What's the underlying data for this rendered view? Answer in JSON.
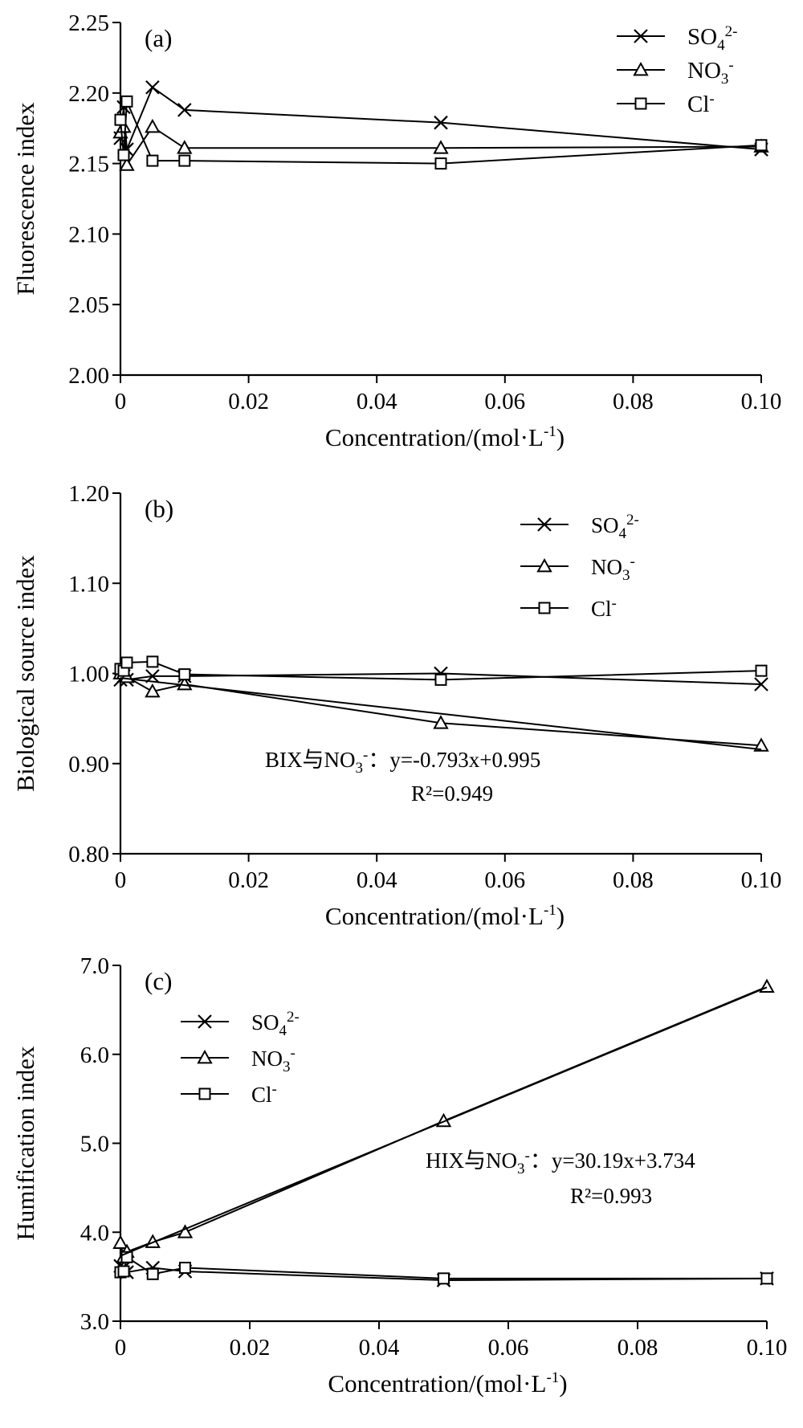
{
  "chart_data": [
    {
      "type": "line",
      "panel_label": "(a)",
      "xlabel": "Concentration/(mol·L",
      "xlabel_sup": "-1",
      "xlabel_tail": ")",
      "ylabel": "Fluorescence index",
      "xlim": [
        0,
        0.1
      ],
      "ylim": [
        2.0,
        2.25
      ],
      "xticks": [
        0,
        0.02,
        0.04,
        0.06,
        0.08,
        0.1
      ],
      "xtick_labels": [
        "0",
        "0.02",
        "0.04",
        "0.06",
        "0.08",
        "0.10"
      ],
      "yticks": [
        2.0,
        2.05,
        2.1,
        2.15,
        2.2,
        2.25
      ],
      "ytick_labels": [
        "2.00",
        "2.05",
        "2.10",
        "2.15",
        "2.20",
        "2.25"
      ],
      "legend_position": "top-right",
      "series": [
        {
          "name": "SO4 2-",
          "label_base": "SO",
          "label_sub": "4",
          "label_sup": "2-",
          "marker": "x",
          "x": [
            0,
            0.0005,
            0.001,
            0.005,
            0.01,
            0.05,
            0.1
          ],
          "y": [
            2.168,
            2.19,
            2.16,
            2.204,
            2.188,
            2.179,
            2.16
          ]
        },
        {
          "name": "NO3 -",
          "label_base": "NO",
          "label_sub": "3",
          "label_sup": "-",
          "marker": "triangle",
          "x": [
            0,
            0.0005,
            0.001,
            0.005,
            0.01,
            0.05,
            0.1
          ],
          "y": [
            2.172,
            2.176,
            2.149,
            2.176,
            2.161,
            2.161,
            2.162
          ]
        },
        {
          "name": "Cl -",
          "label_base": "Cl",
          "label_sub": "",
          "label_sup": "-",
          "marker": "square",
          "x": [
            0,
            0.0005,
            0.001,
            0.005,
            0.01,
            0.05,
            0.1
          ],
          "y": [
            2.181,
            2.156,
            2.194,
            2.152,
            2.152,
            2.15,
            2.163
          ]
        }
      ]
    },
    {
      "type": "line",
      "panel_label": "(b)",
      "xlabel": "Concentration/(mol·L",
      "xlabel_sup": "-1",
      "xlabel_tail": ")",
      "ylabel": "Biological source index",
      "xlim": [
        0,
        0.1
      ],
      "ylim": [
        0.8,
        1.2
      ],
      "xticks": [
        0,
        0.02,
        0.04,
        0.06,
        0.08,
        0.1
      ],
      "xtick_labels": [
        "0",
        "0.02",
        "0.04",
        "0.06",
        "0.08",
        "0.10"
      ],
      "yticks": [
        0.8,
        0.9,
        1.0,
        1.1,
        1.2
      ],
      "ytick_labels": [
        "0.80",
        "0.90",
        "1.00",
        "1.10",
        "1.20"
      ],
      "legend_position": "top-right",
      "annotation": {
        "line1_prefix": "BIX与NO",
        "line1_sub": "3",
        "line1_sup": "-",
        "line1_colon": "：",
        "line1_eq": "y=-0.793x+0.995",
        "line2": "R²=0.949"
      },
      "fit_line": {
        "slope": -0.793,
        "intercept": 0.995
      },
      "series": [
        {
          "name": "SO4 2-",
          "label_base": "SO",
          "label_sub": "4",
          "label_sup": "2-",
          "marker": "x",
          "x": [
            0,
            0.0005,
            0.001,
            0.005,
            0.01,
            0.05,
            0.1
          ],
          "y": [
            0.993,
            0.997,
            0.993,
            0.997,
            0.997,
            1.0,
            0.988
          ]
        },
        {
          "name": "NO3 -",
          "label_base": "NO",
          "label_sub": "3",
          "label_sup": "-",
          "marker": "triangle",
          "x": [
            0,
            0.0005,
            0.001,
            0.005,
            0.01,
            0.05,
            0.1
          ],
          "y": [
            1.0,
            1.0,
            0.996,
            0.98,
            0.988,
            0.945,
            0.92
          ]
        },
        {
          "name": "Cl -",
          "label_base": "Cl",
          "label_sub": "",
          "label_sup": "-",
          "marker": "square",
          "x": [
            0,
            0.0005,
            0.001,
            0.005,
            0.01,
            0.05,
            0.1
          ],
          "y": [
            1.005,
            1.003,
            1.012,
            1.013,
            0.999,
            0.993,
            1.003
          ]
        }
      ]
    },
    {
      "type": "line",
      "panel_label": "(c)",
      "xlabel": "Concentration/(mol·L",
      "xlabel_sup": "-1",
      "xlabel_tail": ")",
      "ylabel": "Humification index",
      "xlim": [
        0,
        0.1
      ],
      "ylim": [
        3.0,
        7.0
      ],
      "xticks": [
        0,
        0.02,
        0.04,
        0.06,
        0.08,
        0.1
      ],
      "xtick_labels": [
        "0",
        "0.02",
        "0.04",
        "0.06",
        "0.08",
        "0.10"
      ],
      "yticks": [
        3.0,
        4.0,
        5.0,
        6.0,
        7.0
      ],
      "ytick_labels": [
        "3.0",
        "4.0",
        "5.0",
        "6.0",
        "7.0"
      ],
      "legend_position": "top-left",
      "annotation": {
        "line1_prefix": "HIX与NO",
        "line1_sub": "3",
        "line1_sup": "-",
        "line1_colon": "：",
        "line1_eq": "y=30.19x+3.734",
        "line2": "R²=0.993"
      },
      "fit_line": {
        "slope": 30.19,
        "intercept": 3.734
      },
      "series": [
        {
          "name": "SO4 2-",
          "label_base": "SO",
          "label_sub": "4",
          "label_sup": "2-",
          "marker": "x",
          "x": [
            0,
            0.0005,
            0.001,
            0.005,
            0.01,
            0.05,
            0.1
          ],
          "y": [
            3.62,
            3.6,
            3.55,
            3.6,
            3.56,
            3.46,
            3.48
          ]
        },
        {
          "name": "NO3 -",
          "label_base": "NO",
          "label_sub": "3",
          "label_sup": "-",
          "marker": "triangle",
          "x": [
            0,
            0.0005,
            0.001,
            0.005,
            0.01,
            0.05,
            0.1
          ],
          "y": [
            3.88,
            3.72,
            3.78,
            3.89,
            4.0,
            5.25,
            6.76
          ]
        },
        {
          "name": "Cl -",
          "label_base": "Cl",
          "label_sub": "",
          "label_sup": "-",
          "marker": "square",
          "x": [
            0,
            0.0005,
            0.001,
            0.005,
            0.01,
            0.05,
            0.1
          ],
          "y": [
            3.55,
            3.56,
            3.72,
            3.53,
            3.6,
            3.48,
            3.48
          ]
        }
      ]
    }
  ]
}
